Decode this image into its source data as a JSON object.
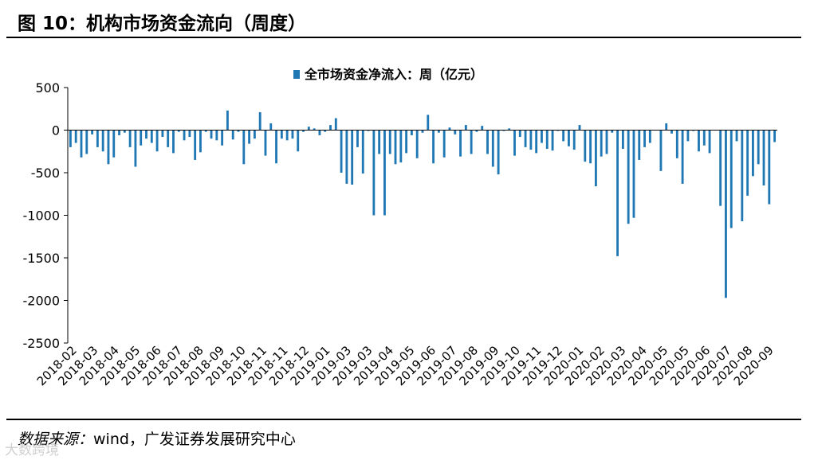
{
  "figure": {
    "title": "图 10：机构市场资金流向（周度）"
  },
  "source": {
    "label": "数据来源：",
    "text": "wind，广发证券发展研究中心"
  },
  "watermark": {
    "text": "大数跨境"
  },
  "colors": {
    "bar": "#1f77b4",
    "axis": "#000000",
    "text": "#000000"
  },
  "chart_data": {
    "type": "bar",
    "title": "",
    "legend": "全市场资金净流入：周（亿元）",
    "legend_position": "top",
    "xlabel": "",
    "ylabel": "",
    "ylim": [
      -2500,
      500
    ],
    "yticks": [
      500,
      0,
      -500,
      -1000,
      -1500,
      -2000,
      -2500
    ],
    "grid": false,
    "x_tick_labels": [
      "2018-02",
      "2018-03",
      "2018-04",
      "2018-05",
      "2018-06",
      "2018-07",
      "2018-08",
      "2018-09",
      "2018-10",
      "2018-11",
      "2018-11",
      "2018-12",
      "2019-01",
      "2019-03",
      "2019-03",
      "2019-04",
      "2019-05",
      "2019-06",
      "2019-07",
      "2019-08",
      "2019-09",
      "2019-10",
      "2019-11",
      "2019-12",
      "2020-01",
      "2020-02",
      "2020-03",
      "2020-04",
      "2020-05",
      "2020-05",
      "2020-06",
      "2020-07",
      "2020-08",
      "2020-09"
    ],
    "categories_note": "weekly observations from 2018-02 to 2020-09",
    "values": [
      -200,
      -150,
      -320,
      -280,
      -50,
      -200,
      -250,
      -400,
      -320,
      -60,
      -30,
      -200,
      -430,
      -180,
      -100,
      -150,
      -250,
      -80,
      -200,
      -270,
      -20,
      -120,
      -80,
      -350,
      -260,
      -20,
      -100,
      -120,
      -180,
      230,
      -110,
      -20,
      -400,
      -160,
      -100,
      210,
      -300,
      80,
      -390,
      -100,
      -120,
      -100,
      -250,
      -20,
      40,
      20,
      -60,
      -20,
      60,
      140,
      -500,
      -630,
      -640,
      -200,
      -510,
      -10,
      -1000,
      -280,
      -1000,
      -280,
      -400,
      -380,
      -270,
      -60,
      -330,
      -30,
      180,
      -390,
      -30,
      -320,
      30,
      -50,
      -310,
      60,
      -280,
      -20,
      50,
      -280,
      -430,
      -520,
      -10,
      20,
      -300,
      -80,
      -200,
      -230,
      -270,
      -150,
      -220,
      -240,
      -10,
      -130,
      -190,
      -230,
      60,
      -370,
      -390,
      -660,
      -310,
      -280,
      -30,
      -1480,
      -220,
      -1100,
      -1030,
      -350,
      -200,
      -150,
      -5,
      -480,
      80,
      -40,
      -330,
      -630,
      -130,
      -10,
      -250,
      -180,
      -270,
      -5,
      -890,
      -1970,
      -1150,
      -130,
      -1070,
      -770,
      -540,
      -400,
      -650,
      -870,
      -140
    ]
  }
}
